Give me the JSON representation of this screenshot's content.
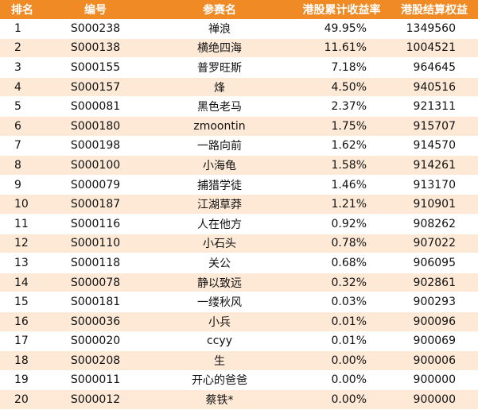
{
  "colors": {
    "header_bg": "#f08a24",
    "header_text": "#ffffff",
    "row_odd_bg": "#ffffff",
    "row_even_bg": "#fde9d6"
  },
  "table": {
    "headers": {
      "rank": "排名",
      "id": "编号",
      "name": "参赛名",
      "return_rate": "港股累计收益率",
      "equity": "港股结算权益"
    },
    "rows": [
      {
        "rank": "1",
        "id": "S000238",
        "name": "禅浪",
        "return_rate": "49.95%",
        "equity": "1349560"
      },
      {
        "rank": "2",
        "id": "S000138",
        "name": "横绝四海",
        "return_rate": "11.61%",
        "equity": "1004521"
      },
      {
        "rank": "3",
        "id": "S000155",
        "name": "普罗旺斯",
        "return_rate": "7.18%",
        "equity": "964645"
      },
      {
        "rank": "4",
        "id": "S000157",
        "name": "烽",
        "return_rate": "4.50%",
        "equity": "940516"
      },
      {
        "rank": "5",
        "id": "S000081",
        "name": "黑色老马",
        "return_rate": "2.37%",
        "equity": "921311"
      },
      {
        "rank": "6",
        "id": "S000180",
        "name": "zmoontin",
        "return_rate": "1.75%",
        "equity": "915707"
      },
      {
        "rank": "7",
        "id": "S000198",
        "name": "一路向前",
        "return_rate": "1.62%",
        "equity": "914570"
      },
      {
        "rank": "8",
        "id": "S000100",
        "name": "小海龟",
        "return_rate": "1.58%",
        "equity": "914261"
      },
      {
        "rank": "9",
        "id": "S000079",
        "name": "捕猎学徒",
        "return_rate": "1.46%",
        "equity": "913170"
      },
      {
        "rank": "10",
        "id": "S000187",
        "name": "江湖草莽",
        "return_rate": "1.21%",
        "equity": "910901"
      },
      {
        "rank": "11",
        "id": "S000116",
        "name": "人在他方",
        "return_rate": "0.92%",
        "equity": "908262"
      },
      {
        "rank": "12",
        "id": "S000110",
        "name": "小石头",
        "return_rate": "0.78%",
        "equity": "907022"
      },
      {
        "rank": "13",
        "id": "S000118",
        "name": "关公",
        "return_rate": "0.68%",
        "equity": "906095"
      },
      {
        "rank": "14",
        "id": "S000078",
        "name": "静以致远",
        "return_rate": "0.32%",
        "equity": "902861"
      },
      {
        "rank": "15",
        "id": "S000181",
        "name": "一缕秋风",
        "return_rate": "0.03%",
        "equity": "900293"
      },
      {
        "rank": "16",
        "id": "S000036",
        "name": "小兵",
        "return_rate": "0.01%",
        "equity": "900096"
      },
      {
        "rank": "17",
        "id": "S000020",
        "name": "ccyy",
        "return_rate": "0.01%",
        "equity": "900069"
      },
      {
        "rank": "18",
        "id": "S000208",
        "name": "生",
        "return_rate": "0.00%",
        "equity": "900006"
      },
      {
        "rank": "19",
        "id": "S000011",
        "name": "开心的爸爸",
        "return_rate": "0.00%",
        "equity": "900000"
      },
      {
        "rank": "20",
        "id": "S000012",
        "name": "蔡铁*",
        "return_rate": "0.00%",
        "equity": "900000"
      }
    ]
  }
}
